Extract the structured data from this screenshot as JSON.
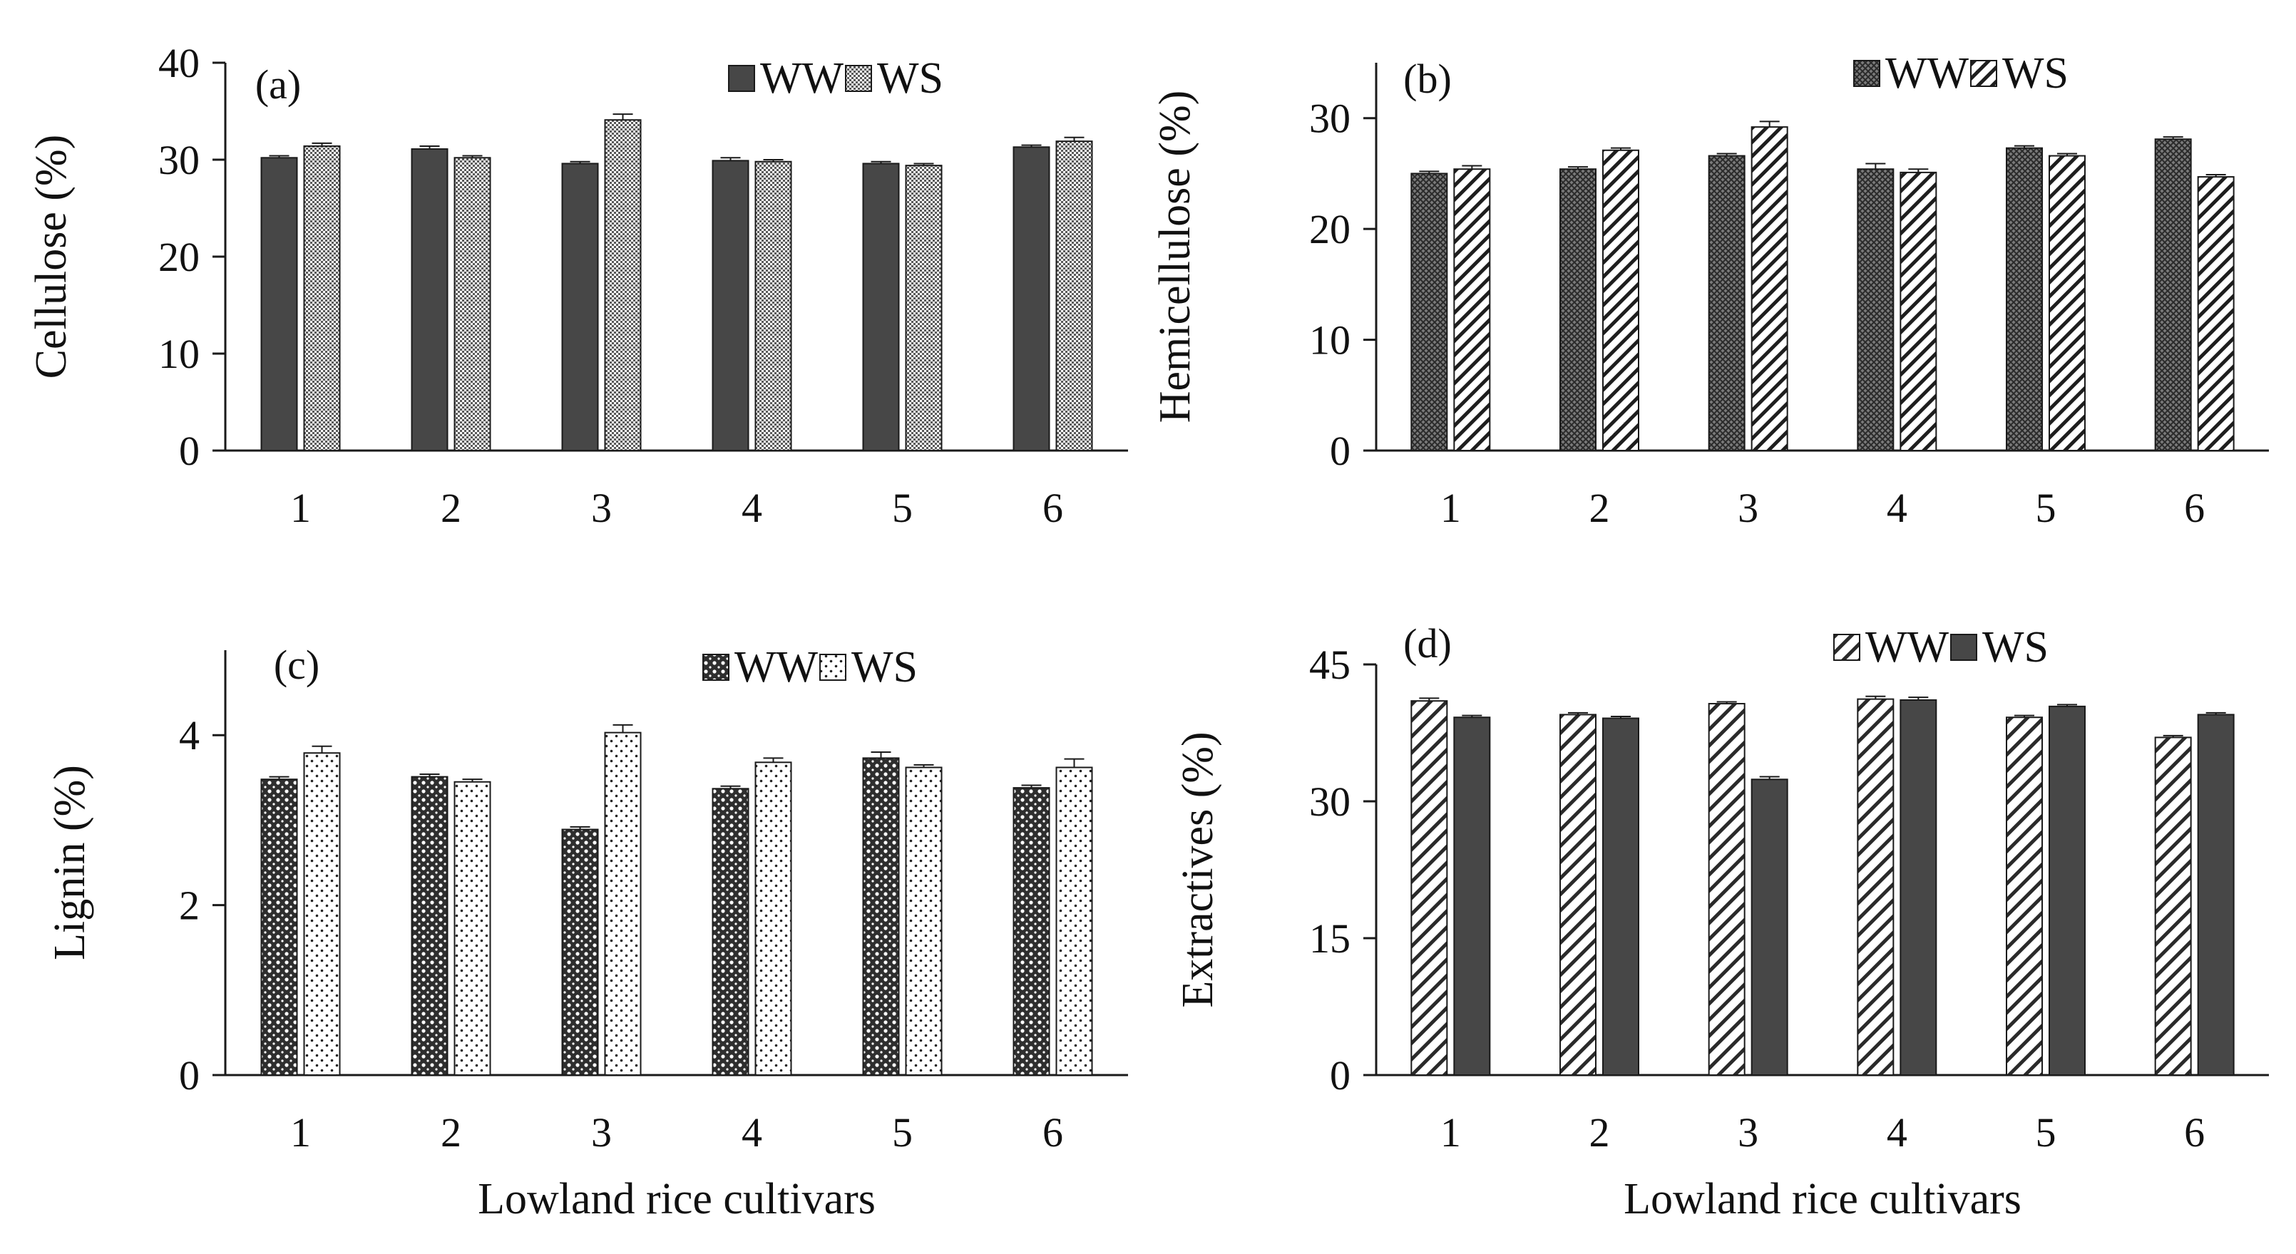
{
  "colors": {
    "dark_fill": "#474747",
    "axis": "#1a1a1a",
    "background": "#ffffff"
  },
  "chart_data": [
    {
      "panel_label": "(a)",
      "type": "bar",
      "categories": [
        "1",
        "2",
        "3",
        "4",
        "5",
        "6"
      ],
      "ylabel": "Cellulose (%)",
      "xlabel": "",
      "ylim": [
        0,
        40
      ],
      "yticks": [
        0,
        10,
        20,
        30,
        40
      ],
      "grid": false,
      "legend_position": "top-right",
      "series": [
        {
          "name": "WW",
          "pattern": "solid-dark",
          "values": [
            30.2,
            31.1,
            29.6,
            29.9,
            29.6,
            31.3
          ],
          "errors": [
            0.2,
            0.3,
            0.2,
            0.3,
            0.2,
            0.2
          ]
        },
        {
          "name": "WS",
          "pattern": "fine-dots",
          "values": [
            31.4,
            30.2,
            34.1,
            29.8,
            29.4,
            31.9
          ],
          "errors": [
            0.3,
            0.2,
            0.6,
            0.2,
            0.2,
            0.4
          ]
        }
      ]
    },
    {
      "panel_label": "(b)",
      "type": "bar",
      "categories": [
        "1",
        "2",
        "3",
        "4",
        "5",
        "6"
      ],
      "ylabel": "Hemicellulose (%)",
      "xlabel": "",
      "ylim": [
        0,
        35
      ],
      "yticks": [
        0,
        10,
        20,
        30
      ],
      "grid": false,
      "legend_position": "top-right",
      "series": [
        {
          "name": "WW",
          "pattern": "dense-cross",
          "values": [
            25.0,
            25.4,
            26.6,
            25.4,
            27.3,
            28.1
          ],
          "errors": [
            0.2,
            0.2,
            0.2,
            0.5,
            0.2,
            0.2
          ]
        },
        {
          "name": "WS",
          "pattern": "diagonal-stripes",
          "values": [
            25.4,
            27.1,
            29.2,
            25.1,
            26.6,
            24.7
          ],
          "errors": [
            0.3,
            0.2,
            0.5,
            0.3,
            0.2,
            0.2
          ]
        }
      ]
    },
    {
      "panel_label": "(c)",
      "type": "bar",
      "categories": [
        "1",
        "2",
        "3",
        "4",
        "5",
        "6"
      ],
      "ylabel": "Lignin (%)",
      "xlabel": "Lowland rice cultivars",
      "ylim": [
        0,
        5
      ],
      "yticks": [
        0,
        2,
        4
      ],
      "grid": false,
      "legend_position": "top-right",
      "series": [
        {
          "name": "WW",
          "pattern": "checkered",
          "values": [
            3.48,
            3.51,
            2.89,
            3.37,
            3.73,
            3.38
          ],
          "errors": [
            0.03,
            0.03,
            0.03,
            0.03,
            0.07,
            0.03
          ]
        },
        {
          "name": "WS",
          "pattern": "sparse-dots",
          "values": [
            3.79,
            3.45,
            4.03,
            3.68,
            3.62,
            3.62
          ],
          "errors": [
            0.08,
            0.03,
            0.09,
            0.05,
            0.03,
            0.1
          ]
        }
      ]
    },
    {
      "panel_label": "(d)",
      "type": "bar",
      "categories": [
        "1",
        "2",
        "3",
        "4",
        "5",
        "6"
      ],
      "ylabel": "Extractives (%)",
      "xlabel": "Lowland rice cultivars",
      "ylim": [
        0,
        45
      ],
      "yticks": [
        0,
        15,
        30,
        45
      ],
      "grid": false,
      "legend_position": "top-right",
      "series": [
        {
          "name": "WW",
          "pattern": "wide-diagonal-stripes",
          "values": [
            41.0,
            39.5,
            40.7,
            41.2,
            39.2,
            37.0
          ],
          "errors": [
            0.3,
            0.2,
            0.2,
            0.3,
            0.2,
            0.2
          ]
        },
        {
          "name": "WS",
          "pattern": "solid-dark",
          "values": [
            39.2,
            39.1,
            32.4,
            41.1,
            40.4,
            39.5
          ],
          "errors": [
            0.2,
            0.2,
            0.3,
            0.3,
            0.2,
            0.2
          ]
        }
      ]
    }
  ]
}
